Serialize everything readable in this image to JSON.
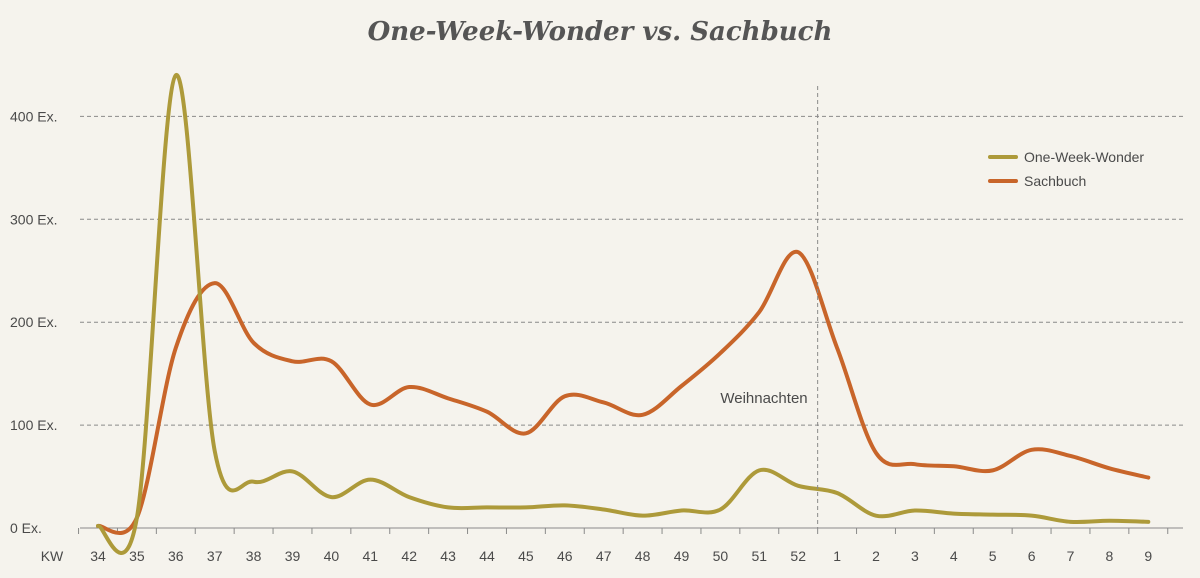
{
  "chart_data": {
    "type": "line",
    "title": "One-Week-Wonder vs. Sachbuch",
    "xlabel": "KW",
    "ylabel": "",
    "categories": [
      "34",
      "35",
      "36",
      "37",
      "38",
      "39",
      "40",
      "41",
      "42",
      "43",
      "44",
      "45",
      "46",
      "47",
      "48",
      "49",
      "50",
      "51",
      "52",
      "1",
      "2",
      "3",
      "4",
      "5",
      "6",
      "7",
      "8",
      "9"
    ],
    "y_ticks": [
      0,
      100,
      200,
      300,
      400
    ],
    "y_tick_labels": [
      "0 Ex.",
      "100 Ex.",
      "200 Ex.",
      "300 Ex.",
      "400 Ex."
    ],
    "ylim": [
      0,
      440
    ],
    "grid": true,
    "legend_position": "top-right",
    "series": [
      {
        "name": "One-Week-Wonder",
        "color": "#ad9a3a",
        "values": [
          2,
          10,
          440,
          75,
          45,
          55,
          30,
          47,
          30,
          20,
          20,
          20,
          22,
          18,
          12,
          17,
          18,
          56,
          41,
          34,
          12,
          17,
          14,
          13,
          12,
          6,
          7,
          6
        ]
      },
      {
        "name": "Sachbuch",
        "color": "#c8652a",
        "values": [
          2,
          10,
          175,
          238,
          180,
          162,
          162,
          120,
          137,
          126,
          113,
          92,
          128,
          122,
          110,
          138,
          170,
          210,
          268,
          175,
          73,
          62,
          60,
          56,
          76,
          70,
          58,
          49
        ]
      }
    ],
    "annotations": [
      {
        "text": "Weihnachten",
        "between": [
          "52",
          "1"
        ]
      }
    ]
  }
}
